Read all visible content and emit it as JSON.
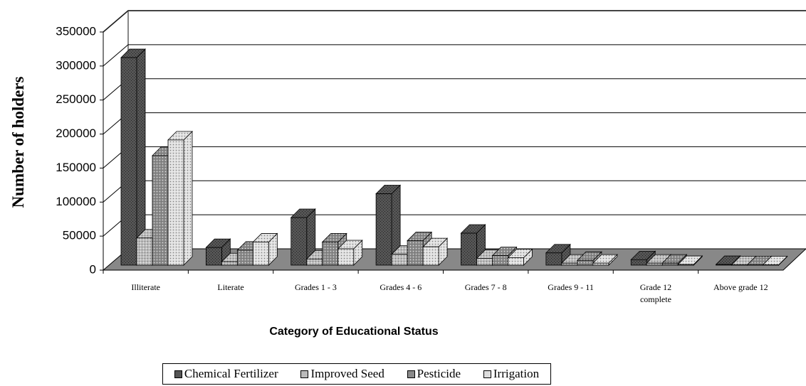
{
  "chart_data": {
    "type": "bar3d",
    "x_label": "Category of Educational Status",
    "y_label": "Number of holders",
    "categories": [
      "Illiterate",
      "Literate",
      "Grades 1 - 3",
      "Grades 4 - 6",
      "Grades 7 - 8",
      "Grades 9 - 11",
      "Grade 12 complete",
      "Above grade 12"
    ],
    "series": [
      {
        "name": "Chemical Fertilizer",
        "color": "#555555",
        "values": [
          305000,
          26000,
          70000,
          105000,
          47000,
          18000,
          8000,
          1000
        ]
      },
      {
        "name": "Improved Seed",
        "color": "#bbbbbb",
        "values": [
          40000,
          5000,
          9000,
          16000,
          10000,
          3000,
          3000,
          500
        ]
      },
      {
        "name": "Pesticide",
        "color": "#8a8a8a",
        "values": [
          161000,
          22000,
          34000,
          36000,
          14000,
          7000,
          3000,
          500
        ]
      },
      {
        "name": "Irrigation",
        "color": "#dddddd",
        "values": [
          184000,
          34000,
          24000,
          27000,
          11000,
          3000,
          1000,
          500
        ]
      }
    ],
    "ylim": [
      0,
      350000
    ],
    "yticks": [
      0,
      50000,
      100000,
      150000,
      200000,
      250000,
      300000,
      350000
    ],
    "grid": true
  }
}
